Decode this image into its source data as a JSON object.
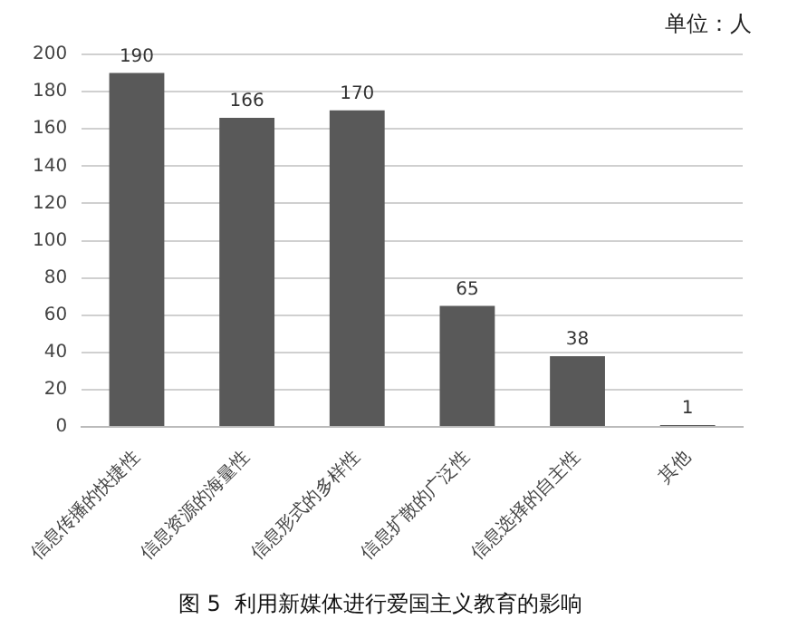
{
  "chart_data": {
    "type": "bar",
    "title": "图 5  利用新媒体进行爱国主义教育的影响",
    "annotations": [
      "单位：人"
    ],
    "categories": [
      "信息传播的快捷性",
      "信息资源的海量性",
      "信息形式的多样性",
      "信息扩散的广泛性",
      "信息选择的自主性",
      "其他"
    ],
    "values": [
      190,
      166,
      170,
      65,
      38,
      1
    ],
    "color": "#595959",
    "data_labels": true,
    "ylim": [
      0,
      200
    ],
    "yticks": [
      0,
      20,
      40,
      60,
      80,
      100,
      120,
      140,
      160,
      180,
      200
    ],
    "grid": "y",
    "legend": false
  }
}
